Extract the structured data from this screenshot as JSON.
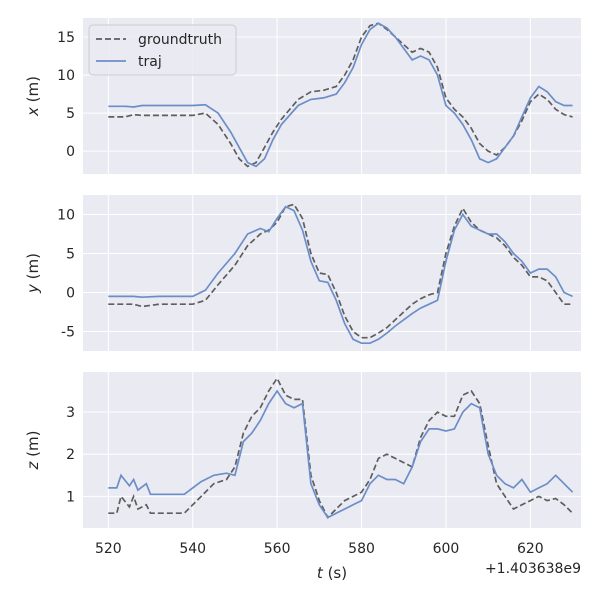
{
  "colors": {
    "background": "#ffffff",
    "plot_background": "#eaeaf2",
    "grid": "#ffffff",
    "groundtruth": "#5e5e5e",
    "traj": "#6c8ec8",
    "text": "#262626"
  },
  "chart_data": [
    {
      "type": "line",
      "ylabel_var": "x",
      "ylabel_unit": " (m)",
      "xlim": [
        514,
        632
      ],
      "ylim": [
        -3,
        17.5
      ],
      "yticks": [
        0,
        5,
        10,
        15
      ],
      "xticks": [
        520,
        540,
        560,
        580,
        600,
        620
      ],
      "grid": true,
      "legend_position": "top-left",
      "series": [
        {
          "name": "groundtruth",
          "style": "dashed",
          "x": [
            520,
            524,
            526,
            528,
            532,
            540,
            543,
            546,
            549,
            551,
            553,
            555,
            557,
            559,
            561,
            565,
            568,
            571,
            574,
            576,
            578,
            580,
            582,
            584,
            586,
            588,
            590,
            592,
            594,
            596,
            598,
            600,
            602,
            604,
            606,
            608,
            610,
            612,
            614,
            616,
            618,
            620,
            622,
            624,
            626,
            628,
            630
          ],
          "values": [
            4.5,
            4.5,
            4.8,
            4.7,
            4.7,
            4.7,
            5.0,
            3.5,
            1.0,
            -1.0,
            -2.0,
            -1.5,
            0.5,
            2.5,
            4.2,
            6.8,
            7.8,
            8.0,
            8.5,
            10.0,
            12.0,
            15.0,
            16.5,
            16.8,
            16.0,
            15.0,
            14.0,
            13.0,
            13.5,
            13.0,
            11.0,
            7.0,
            5.5,
            4.5,
            3.0,
            1.0,
            0.0,
            -0.5,
            0.5,
            2.0,
            4.0,
            6.5,
            7.5,
            6.8,
            5.5,
            4.8,
            4.5
          ]
        },
        {
          "name": "traj",
          "style": "solid",
          "x": [
            520,
            524,
            526,
            528,
            532,
            540,
            543,
            546,
            549,
            551,
            553,
            555,
            557,
            559,
            561,
            565,
            568,
            571,
            574,
            576,
            578,
            580,
            582,
            584,
            586,
            588,
            590,
            592,
            594,
            596,
            598,
            600,
            602,
            604,
            606,
            608,
            610,
            612,
            614,
            616,
            618,
            620,
            622,
            624,
            626,
            628,
            630
          ],
          "values": [
            5.9,
            5.9,
            5.8,
            6.0,
            6.0,
            6.0,
            6.1,
            5.0,
            2.5,
            0.5,
            -1.5,
            -2.0,
            -1.0,
            1.5,
            3.5,
            6.0,
            6.8,
            7.0,
            7.5,
            9.0,
            11.0,
            14.0,
            16.0,
            16.8,
            16.2,
            15.0,
            13.5,
            12.0,
            12.5,
            12.0,
            10.0,
            6.0,
            5.0,
            3.5,
            1.5,
            -1.0,
            -1.5,
            -1.0,
            0.5,
            2.0,
            4.5,
            7.0,
            8.5,
            7.8,
            6.5,
            6.0,
            6.0
          ]
        }
      ]
    },
    {
      "type": "line",
      "ylabel_var": "y",
      "ylabel_unit": " (m)",
      "xlim": [
        514,
        632
      ],
      "ylim": [
        -7.5,
        12.5
      ],
      "yticks": [
        -5,
        0,
        5,
        10
      ],
      "xticks": [
        520,
        540,
        560,
        580,
        600,
        620
      ],
      "grid": true,
      "series": [
        {
          "name": "groundtruth",
          "style": "dashed",
          "x": [
            520,
            526,
            528,
            532,
            540,
            543,
            546,
            550,
            553,
            556,
            558,
            560,
            562,
            564,
            566,
            568,
            570,
            572,
            574,
            576,
            578,
            580,
            582,
            584,
            586,
            588,
            590,
            592,
            594,
            596,
            598,
            600,
            602,
            604,
            606,
            608,
            610,
            612,
            614,
            616,
            618,
            620,
            622,
            624,
            626,
            628,
            630
          ],
          "values": [
            -1.5,
            -1.5,
            -1.8,
            -1.5,
            -1.5,
            -1.0,
            1.0,
            3.5,
            6.0,
            7.5,
            8.0,
            9.0,
            11.0,
            11.3,
            9.5,
            5.0,
            2.5,
            2.3,
            0.0,
            -3.0,
            -5.0,
            -5.8,
            -5.8,
            -5.2,
            -4.5,
            -3.5,
            -2.5,
            -1.5,
            -0.8,
            -0.3,
            0.0,
            5.0,
            8.5,
            10.8,
            9.0,
            8.0,
            7.5,
            7.0,
            6.0,
            4.5,
            3.5,
            2.0,
            2.0,
            1.5,
            0.0,
            -1.5,
            -1.5
          ]
        },
        {
          "name": "traj",
          "style": "solid",
          "x": [
            520,
            526,
            528,
            532,
            540,
            543,
            546,
            550,
            553,
            556,
            558,
            560,
            562,
            564,
            566,
            568,
            570,
            572,
            574,
            576,
            578,
            580,
            582,
            584,
            586,
            588,
            590,
            592,
            594,
            596,
            598,
            600,
            602,
            604,
            606,
            608,
            610,
            612,
            614,
            616,
            618,
            620,
            622,
            624,
            626,
            628,
            630
          ],
          "values": [
            -0.5,
            -0.5,
            -0.6,
            -0.5,
            -0.5,
            0.3,
            2.5,
            5.0,
            7.5,
            8.2,
            7.8,
            9.5,
            11.0,
            10.5,
            8.0,
            4.0,
            1.5,
            1.3,
            -1.0,
            -4.0,
            -6.0,
            -6.5,
            -6.5,
            -6.0,
            -5.2,
            -4.3,
            -3.5,
            -2.7,
            -2.0,
            -1.5,
            -1.0,
            4.0,
            8.0,
            10.0,
            8.5,
            8.0,
            7.5,
            7.5,
            6.5,
            5.0,
            4.0,
            2.5,
            3.0,
            3.0,
            2.0,
            0.0,
            -0.5
          ]
        }
      ]
    },
    {
      "type": "line",
      "ylabel_var": "z",
      "ylabel_unit": " (m)",
      "xlabel_var": "t",
      "xlabel_unit": " (s)",
      "xlim": [
        514,
        632
      ],
      "ylim": [
        0.25,
        3.95
      ],
      "yticks": [
        1,
        2,
        3
      ],
      "xticks": [
        520,
        540,
        560,
        580,
        600,
        620
      ],
      "xtick_labels": [
        "520",
        "540",
        "560",
        "580",
        "600",
        "620"
      ],
      "x_offset_label": "+1.403638e9",
      "grid": true,
      "series": [
        {
          "name": "groundtruth",
          "style": "dashed",
          "x": [
            520,
            522,
            523,
            525,
            526,
            527,
            529,
            530,
            532,
            538,
            540,
            542,
            545,
            548,
            550,
            552,
            554,
            556,
            558,
            560,
            562,
            564,
            566,
            568,
            570,
            572,
            574,
            576,
            578,
            580,
            582,
            584,
            586,
            588,
            590,
            592,
            594,
            596,
            598,
            600,
            602,
            604,
            606,
            608,
            610,
            612,
            614,
            616,
            618,
            620,
            622,
            624,
            626,
            628,
            630
          ],
          "values": [
            0.6,
            0.6,
            1.0,
            0.75,
            1.0,
            0.7,
            0.8,
            0.6,
            0.6,
            0.6,
            0.8,
            1.0,
            1.3,
            1.4,
            1.7,
            2.5,
            2.9,
            3.1,
            3.5,
            3.8,
            3.4,
            3.3,
            3.3,
            1.5,
            0.9,
            0.5,
            0.7,
            0.9,
            1.0,
            1.1,
            1.4,
            1.9,
            2.0,
            1.9,
            1.8,
            1.7,
            2.4,
            2.8,
            3.0,
            2.9,
            2.9,
            3.4,
            3.5,
            3.2,
            2.2,
            1.3,
            1.0,
            0.7,
            0.8,
            0.9,
            1.0,
            0.9,
            0.95,
            0.8,
            0.6
          ]
        },
        {
          "name": "traj",
          "style": "solid",
          "x": [
            520,
            522,
            523,
            525,
            526,
            527,
            529,
            530,
            532,
            538,
            540,
            542,
            545,
            548,
            550,
            552,
            554,
            556,
            558,
            560,
            562,
            564,
            566,
            568,
            570,
            572,
            574,
            576,
            578,
            580,
            582,
            584,
            586,
            588,
            590,
            592,
            594,
            596,
            598,
            600,
            602,
            604,
            606,
            608,
            610,
            612,
            614,
            616,
            618,
            620,
            622,
            624,
            626,
            628,
            630
          ],
          "values": [
            1.2,
            1.2,
            1.5,
            1.25,
            1.4,
            1.15,
            1.3,
            1.05,
            1.05,
            1.05,
            1.2,
            1.35,
            1.5,
            1.55,
            1.5,
            2.3,
            2.5,
            2.8,
            3.2,
            3.5,
            3.2,
            3.1,
            3.2,
            1.3,
            0.8,
            0.5,
            0.6,
            0.7,
            0.8,
            0.9,
            1.3,
            1.5,
            1.4,
            1.4,
            1.3,
            1.7,
            2.3,
            2.6,
            2.6,
            2.55,
            2.6,
            3.0,
            3.2,
            3.1,
            2.0,
            1.5,
            1.3,
            1.2,
            1.4,
            1.1,
            1.2,
            1.3,
            1.5,
            1.3,
            1.1
          ]
        }
      ]
    }
  ]
}
